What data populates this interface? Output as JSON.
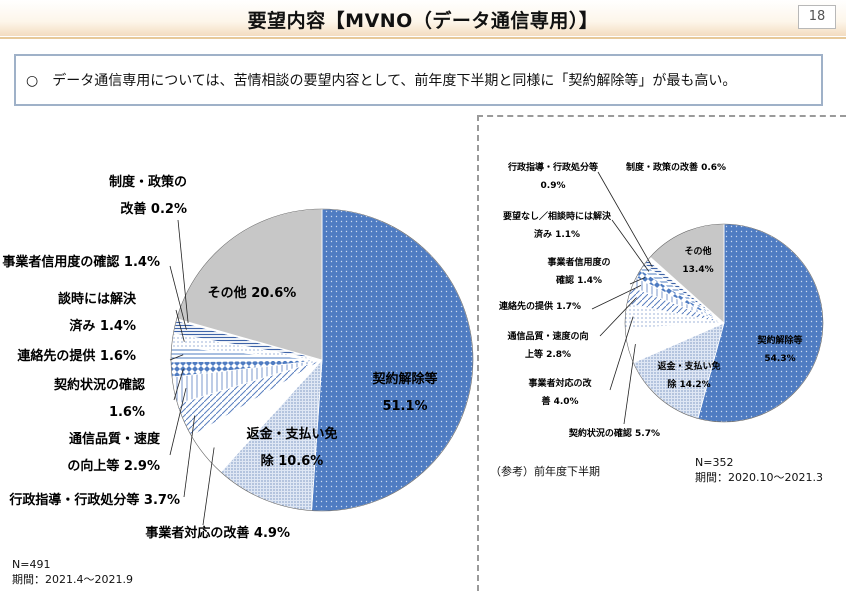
{
  "header": {
    "title": "要望内容【MVNO（データ通信専用）】",
    "page_number": "18"
  },
  "summary": {
    "text": "○　データ通信専用については、苦情相談の要望内容として、前年度下半期と同様に「契約解除等」が最も高い。"
  },
  "chart_data": [
    {
      "type": "pie",
      "name": "current",
      "n_label": "N=491",
      "period_label": "期間：2021.4～2021.9",
      "slices": [
        {
          "label_lines": [
            "契約解除等",
            "51.1%"
          ],
          "value": 51.1,
          "pattern": "dots-blue"
        },
        {
          "label_lines": [
            "返金・支払い免",
            "除 10.6%"
          ],
          "value": 10.6,
          "pattern": "fine-dots"
        },
        {
          "label_lines": [
            "事業者対応の改善 4.9%"
          ],
          "value": 4.9,
          "pattern": "plain"
        },
        {
          "label_lines": [
            "行政指導・行政処分等 3.7%"
          ],
          "value": 3.7,
          "pattern": "dashes"
        },
        {
          "label_lines": [
            "通信品質・速度",
            "の向上等 2.9%"
          ],
          "value": 2.9,
          "pattern": "vlines"
        },
        {
          "label_lines": [
            "契約状況の確認",
            "1.6%"
          ],
          "value": 1.6,
          "pattern": "diamonds"
        },
        {
          "label_lines": [
            "連絡先の提供 1.6%"
          ],
          "value": 1.6,
          "pattern": "hlines"
        },
        {
          "label_lines": [
            "談時には解決",
            "済み 1.4%"
          ],
          "value": 1.4,
          "pattern": "light-dots"
        },
        {
          "label_lines": [
            "事業者信用度の確認 1.4%"
          ],
          "value": 1.4,
          "pattern": "hlines-dense"
        },
        {
          "label_lines": [
            "制度・政策の",
            "改善 0.2%"
          ],
          "value": 0.2,
          "pattern": "plain"
        },
        {
          "label_lines": [
            "その他 20.6%"
          ],
          "value": 20.6,
          "pattern": "gray"
        }
      ]
    },
    {
      "type": "pie",
      "name": "reference",
      "reference_label": "（参考）前年度下半期",
      "n_label": "N=352",
      "period_label": "期間：2020.10～2021.3",
      "slices": [
        {
          "label_lines": [
            "契約解除等",
            "54.3%"
          ],
          "value": 54.3,
          "pattern": "dots-blue"
        },
        {
          "label_lines": [
            "返金・支払い免",
            "除 14.2%"
          ],
          "value": 14.2,
          "pattern": "fine-dots"
        },
        {
          "label_lines": [
            "契約状況の確認 5.7%"
          ],
          "value": 5.7,
          "pattern": "plain"
        },
        {
          "label_lines": [
            "事業者対応の改",
            "善 4.0%"
          ],
          "value": 4.0,
          "pattern": "light-dots"
        },
        {
          "label_lines": [
            "通信品質・速度の向",
            "上等 2.8%"
          ],
          "value": 2.8,
          "pattern": "dashes"
        },
        {
          "label_lines": [
            "連絡先の提供 1.7%"
          ],
          "value": 1.7,
          "pattern": "vlines"
        },
        {
          "label_lines": [
            "事業者信用度の",
            "確認 1.4%"
          ],
          "value": 1.4,
          "pattern": "diamonds"
        },
        {
          "label_lines": [
            "要望なし／相談時には解決",
            "済み 1.1%"
          ],
          "value": 1.1,
          "pattern": "hlines"
        },
        {
          "label_lines": [
            "行政指導・行政処分等",
            "0.9%"
          ],
          "value": 0.9,
          "pattern": "hlines-dense"
        },
        {
          "label_lines": [
            "制度・政策の改善 0.6%"
          ],
          "value": 0.6,
          "pattern": "plain"
        },
        {
          "label_lines": [
            "その他",
            "13.4%"
          ],
          "value": 13.4,
          "pattern": "gray"
        }
      ]
    }
  ]
}
